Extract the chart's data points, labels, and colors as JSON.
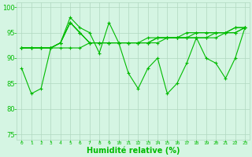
{
  "xlabel": "Humidité relative (%)",
  "xlim": [
    -0.5,
    23.5
  ],
  "ylim": [
    74,
    101
  ],
  "yticks": [
    75,
    80,
    85,
    90,
    95,
    100
  ],
  "xticks": [
    0,
    1,
    2,
    3,
    4,
    5,
    6,
    7,
    8,
    9,
    10,
    11,
    12,
    13,
    14,
    15,
    16,
    17,
    18,
    19,
    20,
    21,
    22,
    23
  ],
  "bg_color": "#d5f5e3",
  "grid_color": "#b0d8c0",
  "line_color": "#00bb00",
  "lines": [
    [
      88,
      83,
      84,
      92,
      93,
      98,
      96,
      95,
      91,
      97,
      93,
      87,
      84,
      88,
      90,
      83,
      85,
      89,
      94,
      90,
      89,
      86,
      90,
      96
    ],
    [
      92,
      92,
      92,
      92,
      93,
      97,
      95,
      93,
      93,
      93,
      93,
      93,
      93,
      93,
      93,
      94,
      94,
      94,
      94,
      94,
      94,
      95,
      96,
      96
    ],
    [
      92,
      92,
      92,
      92,
      93,
      97,
      95,
      93,
      93,
      93,
      93,
      93,
      93,
      93,
      94,
      94,
      94,
      94,
      95,
      95,
      95,
      95,
      95,
      96
    ],
    [
      92,
      92,
      92,
      92,
      93,
      97,
      95,
      93,
      93,
      93,
      93,
      93,
      93,
      94,
      94,
      94,
      94,
      94,
      94,
      94,
      95,
      95,
      95,
      96
    ],
    [
      92,
      92,
      92,
      92,
      92,
      92,
      92,
      93,
      93,
      93,
      93,
      93,
      93,
      93,
      94,
      94,
      94,
      95,
      95,
      95,
      95,
      95,
      96,
      96
    ]
  ]
}
